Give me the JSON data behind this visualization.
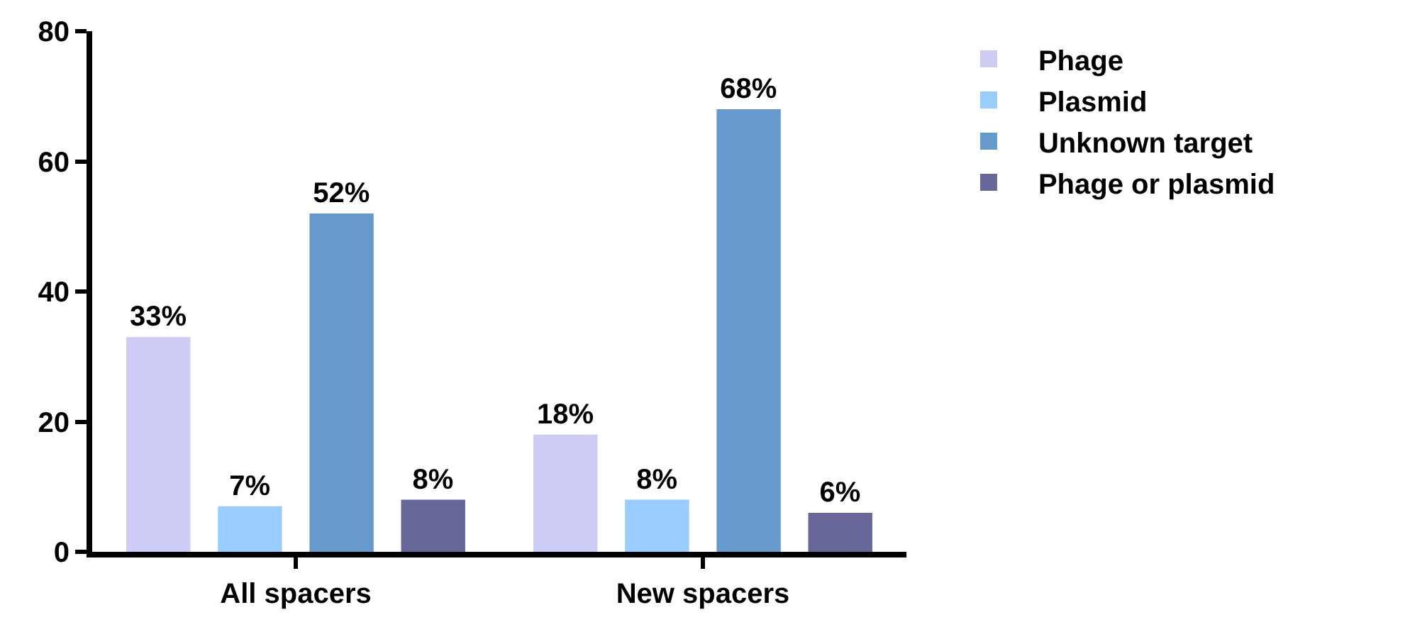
{
  "chart_data": {
    "type": "bar",
    "categories": [
      "All spacers",
      "New spacers"
    ],
    "series": [
      {
        "name": "Phage",
        "color": "#ccccf5",
        "values": [
          33,
          18
        ],
        "value_labels": [
          "33%",
          "18%"
        ]
      },
      {
        "name": "Plasmid",
        "color": "#99ccff",
        "values": [
          7,
          8
        ],
        "value_labels": [
          "7%",
          "8%"
        ]
      },
      {
        "name": "Unknown target",
        "color": "#6699cc",
        "values": [
          52,
          68
        ],
        "value_labels": [
          "52%",
          "68%"
        ]
      },
      {
        "name": "Phage or plasmid",
        "color": "#666699",
        "values": [
          8,
          6
        ],
        "value_labels": [
          "8%",
          "6%"
        ]
      }
    ],
    "ylim": [
      0,
      80
    ],
    "yticks": [
      0,
      20,
      40,
      60,
      80
    ],
    "legend": "top right"
  }
}
